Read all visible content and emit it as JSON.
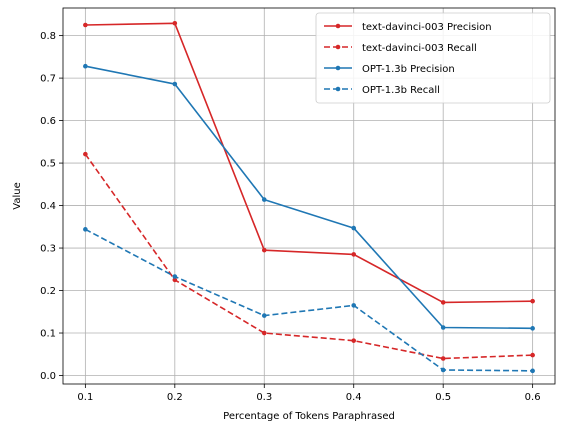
{
  "chart_data": {
    "type": "line",
    "title": "",
    "xlabel": "Percentage of Tokens Paraphrased",
    "ylabel": "Value",
    "x": [
      0.1,
      0.2,
      0.3,
      0.4,
      0.5,
      0.6
    ],
    "x_ticks": [
      "0.1",
      "0.2",
      "0.3",
      "0.4",
      "0.5",
      "0.6"
    ],
    "y_ticks": [
      "0.0",
      "0.1",
      "0.2",
      "0.3",
      "0.4",
      "0.5",
      "0.6",
      "0.7",
      "0.8"
    ],
    "xlim": [
      0.075,
      0.625
    ],
    "ylim": [
      -0.02,
      0.865
    ],
    "grid": true,
    "legend_position": "top-right",
    "series": [
      {
        "name": "text-davinci-003 Precision",
        "color": "#d62728",
        "dash": "solid",
        "values": [
          0.825,
          0.829,
          0.295,
          0.285,
          0.172,
          0.175
        ]
      },
      {
        "name": "text-davinci-003 Recall",
        "color": "#d62728",
        "dash": "dashed",
        "values": [
          0.521,
          0.225,
          0.1,
          0.082,
          0.04,
          0.048
        ]
      },
      {
        "name": "OPT-1.3b Precision",
        "color": "#1f77b4",
        "dash": "solid",
        "values": [
          0.728,
          0.686,
          0.414,
          0.347,
          0.113,
          0.111
        ]
      },
      {
        "name": "OPT-1.3b Recall",
        "color": "#1f77b4",
        "dash": "dashed",
        "values": [
          0.344,
          0.233,
          0.141,
          0.165,
          0.013,
          0.011
        ]
      }
    ]
  }
}
